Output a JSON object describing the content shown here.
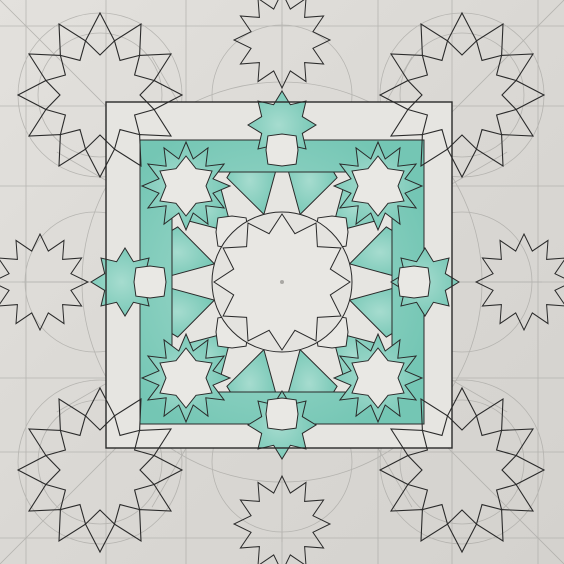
{
  "image": {
    "subject": "geometric-star-pattern-drawing",
    "colors": {
      "paper": "#dedcd8",
      "paper_light": "#e6e4e0",
      "ink": "#2a2a2a",
      "pencil": "#a9a8a4",
      "teal": "#8fd3c4",
      "teal_dark": "#6cc1b2",
      "white_tile": "#e9e8e4"
    },
    "star_points": 12
  }
}
